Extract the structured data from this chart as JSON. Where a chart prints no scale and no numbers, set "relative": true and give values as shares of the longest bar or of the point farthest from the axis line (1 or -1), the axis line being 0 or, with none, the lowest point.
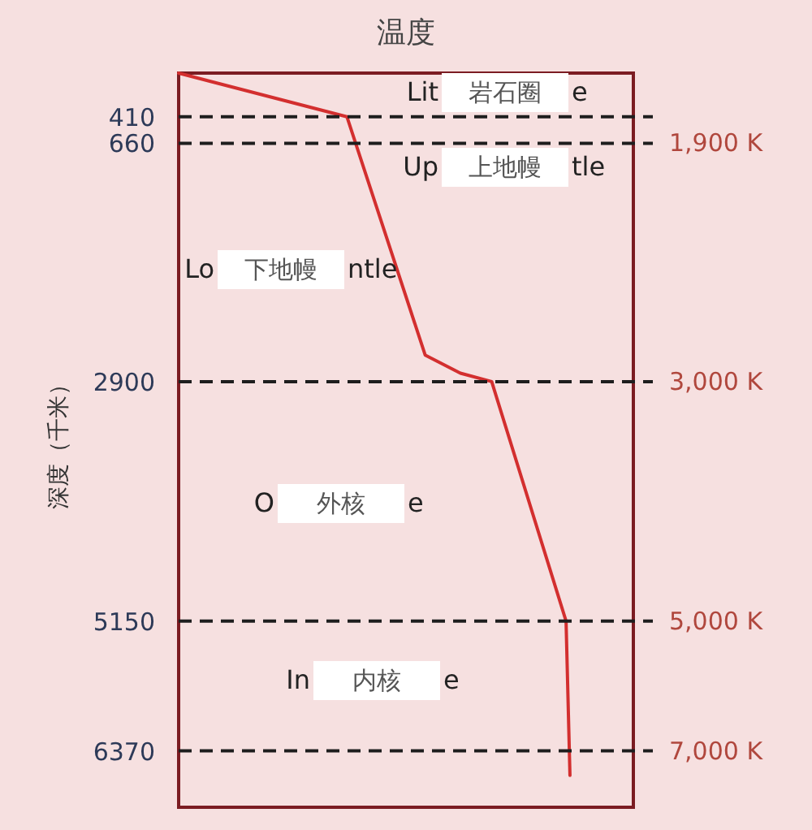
{
  "chart_data": {
    "type": "line",
    "title": "温度",
    "ylabel": "深度（千米）",
    "orientation": "horizontal",
    "relative": true,
    "x": [
      0,
      410,
      2650,
      2820,
      2900,
      5150,
      6600
    ],
    "values": [
      0,
      0.43,
      0.63,
      0.72,
      0.8,
      0.99,
      1
    ],
    "color": "#d32f2f",
    "ylim": [
      6900,
      0
    ],
    "yticks": [
      410,
      660,
      2900,
      5150,
      6370
    ],
    "ref_lines": [
      {
        "axis": "y",
        "value": 410,
        "color": "#1e1e1e",
        "line_style": "dashed"
      },
      {
        "axis": "y",
        "value": 660,
        "label": "1,900 K",
        "color": "#1e1e1e",
        "line_style": "dashed"
      },
      {
        "axis": "y",
        "value": 2900,
        "label": "3,000 K",
        "color": "#1e1e1e",
        "line_style": "dashed"
      },
      {
        "axis": "y",
        "value": 5150,
        "label": "5,000 K",
        "color": "#1e1e1e",
        "line_style": "dashed"
      },
      {
        "axis": "y",
        "value": 6370,
        "label": "7,000 K",
        "color": "#1e1e1e",
        "line_style": "dashed"
      }
    ],
    "annotations": [
      "Lit",
      "岩石圈",
      "e",
      "Up",
      "上地幔",
      "tle",
      "Lo",
      "下地幔",
      "ntle",
      "O",
      "外核",
      "e",
      "In",
      "内核",
      "e"
    ]
  }
}
